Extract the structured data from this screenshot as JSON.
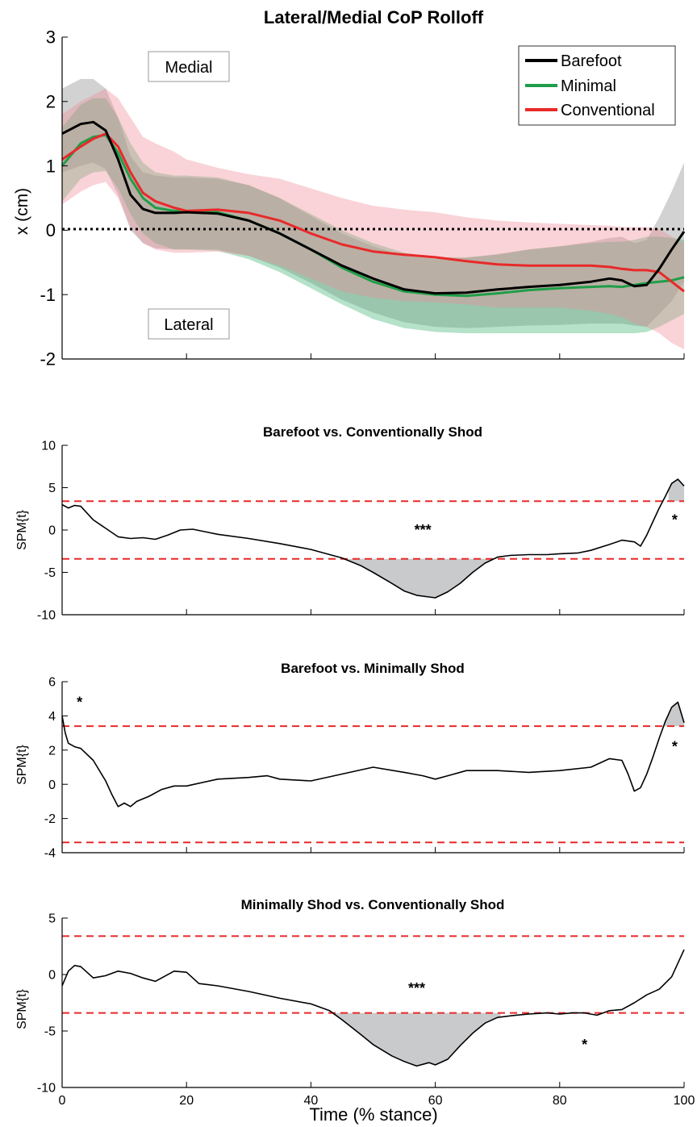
{
  "figure": {
    "xlabel": "Time (% stance)",
    "x_ticks": [
      0,
      20,
      40,
      60,
      80,
      100
    ]
  },
  "chart_data": [
    {
      "type": "line",
      "title": "Lateral/Medial CoP Rolloff",
      "xlabel": "",
      "ylabel": "x (cm)",
      "xlim": [
        0,
        100
      ],
      "ylim": [
        -2,
        3
      ],
      "y_ticks": [
        -2,
        -1,
        0,
        1,
        2,
        3
      ],
      "legend_position": "top-right",
      "reference_line": {
        "y": 0,
        "style": "dotted",
        "color": "#000000"
      },
      "annotations": [
        {
          "text": "Medial",
          "x": 10.5,
          "y": 2.5
        },
        {
          "text": "Lateral",
          "x": 10.5,
          "y": -1.45
        }
      ],
      "x": [
        0,
        3,
        5,
        7,
        9,
        11,
        13,
        15,
        18,
        20,
        25,
        30,
        35,
        40,
        45,
        50,
        55,
        60,
        65,
        70,
        75,
        80,
        85,
        88,
        90,
        92,
        94,
        96,
        98,
        100
      ],
      "series": [
        {
          "name": "Barefoot",
          "color": "#000000",
          "band_color": "#888888",
          "values": [
            1.5,
            1.65,
            1.68,
            1.55,
            1.1,
            0.55,
            0.33,
            0.27,
            0.27,
            0.28,
            0.26,
            0.15,
            -0.05,
            -0.3,
            -0.55,
            -0.75,
            -0.92,
            -0.98,
            -0.97,
            -0.92,
            -0.88,
            -0.85,
            -0.8,
            -0.75,
            -0.78,
            -0.87,
            -0.85,
            -0.6,
            -0.3,
            -0.02
          ],
          "lower": [
            0.9,
            1.0,
            1.05,
            0.95,
            0.55,
            0.0,
            -0.2,
            -0.28,
            -0.3,
            -0.3,
            -0.3,
            -0.4,
            -0.58,
            -0.82,
            -1.08,
            -1.28,
            -1.43,
            -1.5,
            -1.52,
            -1.5,
            -1.48,
            -1.47,
            -1.45,
            -1.45,
            -1.45,
            -1.48,
            -1.5,
            -1.3,
            -1.1,
            -0.8
          ],
          "upper": [
            2.2,
            2.35,
            2.35,
            2.2,
            1.75,
            1.15,
            0.9,
            0.85,
            0.82,
            0.82,
            0.8,
            0.7,
            0.5,
            0.22,
            -0.05,
            -0.25,
            -0.4,
            -0.45,
            -0.43,
            -0.37,
            -0.3,
            -0.25,
            -0.18,
            -0.12,
            -0.1,
            -0.2,
            -0.15,
            0.2,
            0.6,
            1.05
          ]
        },
        {
          "name": "Minimal",
          "color": "#1f9e48",
          "band_color": "#3cb371",
          "values": [
            1.0,
            1.35,
            1.45,
            1.48,
            1.2,
            0.8,
            0.5,
            0.35,
            0.3,
            0.3,
            0.28,
            0.15,
            -0.05,
            -0.3,
            -0.58,
            -0.8,
            -0.95,
            -1.0,
            -1.02,
            -0.98,
            -0.93,
            -0.9,
            -0.88,
            -0.87,
            -0.88,
            -0.85,
            -0.82,
            -0.8,
            -0.78,
            -0.73
          ],
          "lower": [
            0.45,
            0.8,
            0.9,
            0.92,
            0.65,
            0.25,
            -0.05,
            -0.2,
            -0.3,
            -0.3,
            -0.32,
            -0.45,
            -0.65,
            -0.9,
            -1.15,
            -1.38,
            -1.52,
            -1.58,
            -1.6,
            -1.6,
            -1.6,
            -1.6,
            -1.6,
            -1.6,
            -1.6,
            -1.6,
            -1.58,
            -1.5,
            -1.4,
            -1.3
          ],
          "upper": [
            1.6,
            1.95,
            2.05,
            2.05,
            1.75,
            1.35,
            1.05,
            0.9,
            0.85,
            0.85,
            0.82,
            0.7,
            0.5,
            0.25,
            0.0,
            -0.2,
            -0.35,
            -0.42,
            -0.42,
            -0.38,
            -0.3,
            -0.25,
            -0.2,
            -0.18,
            -0.18,
            -0.15,
            -0.1,
            -0.1,
            -0.12,
            -0.15
          ]
        },
        {
          "name": "Conventional",
          "color": "#e8292a",
          "band_color": "#f08c96",
          "values": [
            1.1,
            1.3,
            1.42,
            1.5,
            1.3,
            0.9,
            0.58,
            0.45,
            0.35,
            0.3,
            0.32,
            0.27,
            0.15,
            -0.05,
            -0.22,
            -0.33,
            -0.38,
            -0.42,
            -0.48,
            -0.53,
            -0.55,
            -0.55,
            -0.55,
            -0.57,
            -0.6,
            -0.62,
            -0.62,
            -0.65,
            -0.8,
            -0.95
          ],
          "lower": [
            0.4,
            0.6,
            0.7,
            0.75,
            0.5,
            0.05,
            -0.2,
            -0.3,
            -0.35,
            -0.35,
            -0.33,
            -0.4,
            -0.55,
            -0.75,
            -0.95,
            -1.05,
            -1.1,
            -1.12,
            -1.15,
            -1.2,
            -1.2,
            -1.2,
            -1.25,
            -1.3,
            -1.35,
            -1.45,
            -1.5,
            -1.6,
            -1.75,
            -1.85
          ],
          "upper": [
            1.8,
            2.0,
            2.1,
            2.2,
            2.05,
            1.75,
            1.45,
            1.35,
            1.22,
            1.1,
            0.97,
            0.87,
            0.8,
            0.65,
            0.5,
            0.38,
            0.32,
            0.28,
            0.2,
            0.15,
            0.12,
            0.1,
            0.08,
            0.07,
            0.05,
            0.05,
            0.05,
            0.02,
            -0.1,
            -0.2
          ]
        }
      ]
    },
    {
      "type": "line",
      "title": "Barefoot vs. Conventionally Shod",
      "ylabel": "SPM{t}",
      "xlim": [
        0,
        100
      ],
      "ylim": [
        -10,
        10
      ],
      "y_ticks": [
        -10,
        -5,
        0,
        5,
        10
      ],
      "threshold": 3.4,
      "annotations": [
        {
          "text": "***",
          "x": 58,
          "y": 0
        },
        {
          "text": "*",
          "x": 98.5,
          "y": 1.2
        }
      ],
      "x": [
        0,
        1,
        2,
        3,
        5,
        7,
        9,
        11,
        13,
        15,
        17,
        19,
        21,
        23,
        25,
        30,
        35,
        40,
        45,
        48,
        50,
        53,
        55,
        57,
        59,
        60,
        62,
        64,
        66,
        68,
        70,
        72,
        75,
        78,
        80,
        83,
        85,
        88,
        90,
        92,
        93,
        94,
        95,
        96,
        97,
        98,
        99,
        100
      ],
      "values": [
        3.0,
        2.6,
        2.9,
        2.8,
        1.2,
        0.2,
        -0.8,
        -1.0,
        -0.9,
        -1.1,
        -0.6,
        0.0,
        0.1,
        -0.2,
        -0.5,
        -1.0,
        -1.6,
        -2.3,
        -3.3,
        -4.2,
        -5.0,
        -6.3,
        -7.2,
        -7.7,
        -7.9,
        -8.0,
        -7.3,
        -6.3,
        -5.0,
        -3.9,
        -3.2,
        -3.0,
        -2.9,
        -2.9,
        -2.8,
        -2.7,
        -2.4,
        -1.7,
        -1.2,
        -1.4,
        -1.9,
        -0.6,
        1.0,
        2.6,
        4.0,
        5.5,
        6.0,
        5.2
      ],
      "shaded_regions": [
        [
          46,
          71
        ],
        [
          97.5,
          100
        ]
      ]
    },
    {
      "type": "line",
      "title": "Barefoot vs. Minimally Shod",
      "ylabel": "SPM{t}",
      "xlim": [
        0,
        100
      ],
      "ylim": [
        -4,
        6
      ],
      "y_ticks": [
        -4,
        -2,
        0,
        2,
        4,
        6
      ],
      "threshold": 3.4,
      "annotations": [
        {
          "text": "*",
          "x": 2.8,
          "y": 4.8
        },
        {
          "text": "*",
          "x": 98.5,
          "y": 2.2
        }
      ],
      "x": [
        0,
        0.5,
        1,
        2,
        3,
        5,
        7,
        8,
        9,
        10,
        11,
        12,
        14,
        16,
        18,
        20,
        25,
        30,
        33,
        35,
        40,
        45,
        50,
        55,
        58,
        60,
        62,
        65,
        70,
        75,
        80,
        85,
        88,
        90,
        91,
        92,
        93,
        94,
        95,
        96,
        97,
        98,
        99,
        100
      ],
      "values": [
        4.0,
        3.0,
        2.4,
        2.2,
        2.1,
        1.4,
        0.2,
        -0.6,
        -1.3,
        -1.1,
        -1.3,
        -1.0,
        -0.7,
        -0.3,
        -0.1,
        -0.1,
        0.3,
        0.4,
        0.5,
        0.3,
        0.2,
        0.6,
        1.0,
        0.7,
        0.5,
        0.3,
        0.5,
        0.8,
        0.8,
        0.7,
        0.8,
        1.0,
        1.5,
        1.4,
        0.6,
        -0.4,
        -0.2,
        0.6,
        1.6,
        2.7,
        3.7,
        4.5,
        4.8,
        3.6
      ],
      "shaded_regions": [
        [
          96.8,
          100
        ]
      ]
    },
    {
      "type": "line",
      "title": "Minimally Shod vs. Conventionally Shod",
      "ylabel": "SPM{t}",
      "xlabel": "Time (% stance)",
      "xlim": [
        0,
        100
      ],
      "ylim": [
        -10,
        5
      ],
      "y_ticks": [
        -10,
        -5,
        0,
        5
      ],
      "threshold": 3.4,
      "annotations": [
        {
          "text": "***",
          "x": 57,
          "y": -1.2
        },
        {
          "text": "*",
          "x": 84,
          "y": -6.2
        }
      ],
      "x": [
        0,
        1,
        2,
        3,
        5,
        7,
        9,
        11,
        13,
        15,
        18,
        20,
        22,
        25,
        30,
        35,
        40,
        43,
        45,
        48,
        50,
        53,
        55,
        57,
        59,
        60,
        62,
        64,
        66,
        68,
        70,
        73,
        75,
        78,
        80,
        82,
        84,
        86,
        88,
        90,
        92,
        94,
        96,
        98,
        100
      ],
      "values": [
        -1.0,
        0.3,
        0.8,
        0.7,
        -0.3,
        -0.1,
        0.3,
        0.1,
        -0.3,
        -0.6,
        0.3,
        0.2,
        -0.8,
        -1.0,
        -1.5,
        -2.1,
        -2.6,
        -3.2,
        -4.0,
        -5.3,
        -6.2,
        -7.2,
        -7.7,
        -8.1,
        -7.8,
        -8.0,
        -7.5,
        -6.3,
        -5.2,
        -4.3,
        -3.8,
        -3.6,
        -3.5,
        -3.4,
        -3.5,
        -3.4,
        -3.4,
        -3.6,
        -3.2,
        -3.1,
        -2.5,
        -1.8,
        -1.3,
        -0.2,
        2.2
      ],
      "shaded_regions": [
        [
          42.5,
          70.5
        ]
      ]
    }
  ]
}
